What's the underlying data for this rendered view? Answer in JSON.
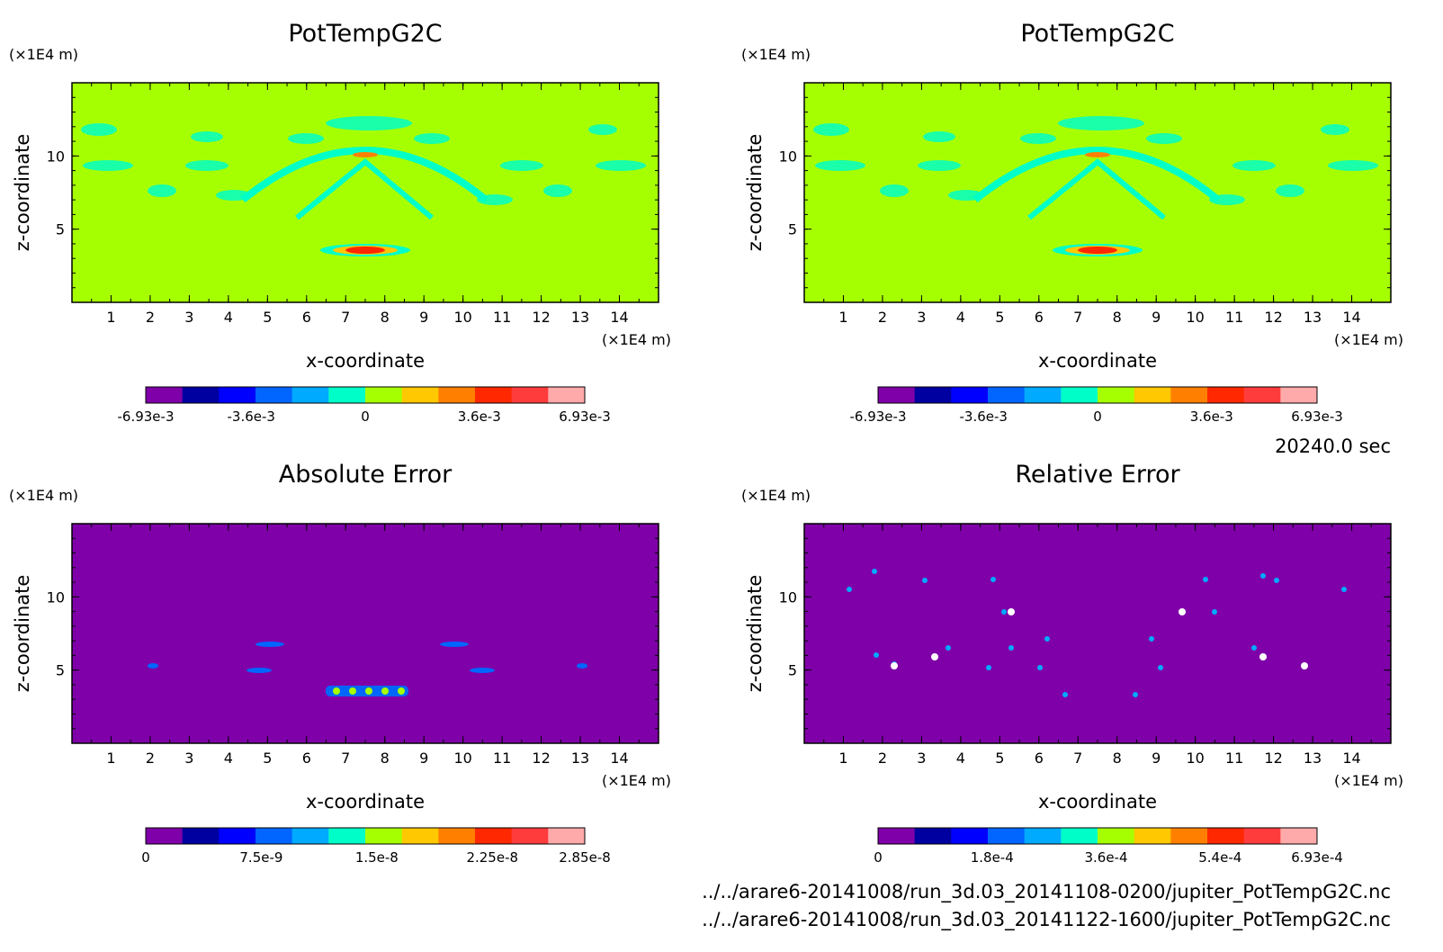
{
  "chart_data": [
    {
      "type": "heatmap",
      "title": "PotTempG2C",
      "xlabel": "x-coordinate",
      "ylabel": "z-coordinate",
      "x_unit": "(×1E4 m)",
      "y_unit": "(×1E4 m)",
      "xlim": [
        0,
        15
      ],
      "ylim": [
        0,
        15
      ],
      "xticks": [
        "1",
        "2",
        "3",
        "4",
        "5",
        "6",
        "7",
        "8",
        "9",
        "10",
        "11",
        "12",
        "13",
        "14"
      ],
      "yticks": [
        "5",
        "10"
      ],
      "colorbar_ticks": [
        "-6.93e-3",
        "-3.6e-3",
        "0",
        "3.6e-3",
        "6.93e-3"
      ],
      "colorbar_range": [
        -0.00693,
        0.00693
      ],
      "background_color": "#a6ff00",
      "colors": [
        "#7f00a8",
        "#0000a0",
        "#0000ff",
        "#0066ff",
        "#00aaff",
        "#00ffc8",
        "#a6ff00",
        "#ffc800",
        "#ff8000",
        "#ff2800",
        "#ff3c3c",
        "#ffaaaa"
      ]
    },
    {
      "type": "heatmap",
      "title": "PotTempG2C",
      "xlabel": "x-coordinate",
      "ylabel": "z-coordinate",
      "x_unit": "(×1E4 m)",
      "y_unit": "(×1E4 m)",
      "xlim": [
        0,
        15
      ],
      "ylim": [
        0,
        15
      ],
      "xticks": [
        "1",
        "2",
        "3",
        "4",
        "5",
        "6",
        "7",
        "8",
        "9",
        "10",
        "11",
        "12",
        "13",
        "14"
      ],
      "yticks": [
        "5",
        "10"
      ],
      "colorbar_ticks": [
        "-6.93e-3",
        "-3.6e-3",
        "0",
        "3.6e-3",
        "6.93e-3"
      ],
      "colorbar_range": [
        -0.00693,
        0.00693
      ],
      "background_color": "#a6ff00",
      "colors": [
        "#7f00a8",
        "#0000a0",
        "#0000ff",
        "#0066ff",
        "#00aaff",
        "#00ffc8",
        "#a6ff00",
        "#ffc800",
        "#ff8000",
        "#ff2800",
        "#ff3c3c",
        "#ffaaaa"
      ]
    },
    {
      "type": "heatmap",
      "title": "Absolute Error",
      "xlabel": "x-coordinate",
      "ylabel": "z-coordinate",
      "x_unit": "(×1E4 m)",
      "y_unit": "(×1E4 m)",
      "xlim": [
        0,
        15
      ],
      "ylim": [
        0,
        15
      ],
      "xticks": [
        "1",
        "2",
        "3",
        "4",
        "5",
        "6",
        "7",
        "8",
        "9",
        "10",
        "11",
        "12",
        "13",
        "14"
      ],
      "yticks": [
        "5",
        "10"
      ],
      "colorbar_ticks": [
        "0",
        "7.5e-9",
        "1.5e-8",
        "2.25e-8",
        "2.85e-8"
      ],
      "colorbar_range": [
        0,
        2.85e-08
      ],
      "background_color": "#7f00a8",
      "colors": [
        "#7f00a8",
        "#0000a0",
        "#0000ff",
        "#0066ff",
        "#00aaff",
        "#00ffc8",
        "#a6ff00",
        "#ffc800",
        "#ff8000",
        "#ff2800",
        "#ff3c3c",
        "#ffaaaa"
      ]
    },
    {
      "type": "heatmap",
      "title": "Relative Error",
      "xlabel": "x-coordinate",
      "ylabel": "z-coordinate",
      "x_unit": "(×1E4 m)",
      "y_unit": "(×1E4 m)",
      "xlim": [
        0,
        15
      ],
      "ylim": [
        0,
        15
      ],
      "xticks": [
        "1",
        "2",
        "3",
        "4",
        "5",
        "6",
        "7",
        "8",
        "9",
        "10",
        "11",
        "12",
        "13",
        "14"
      ],
      "yticks": [
        "5",
        "10"
      ],
      "colorbar_ticks": [
        "0",
        "1.8e-4",
        "3.6e-4",
        "5.4e-4",
        "6.93e-4"
      ],
      "colorbar_range": [
        0,
        0.000693
      ],
      "background_color": "#7f00a8",
      "colors": [
        "#7f00a8",
        "#0000a0",
        "#0000ff",
        "#0066ff",
        "#00aaff",
        "#00ffc8",
        "#a6ff00",
        "#ffc800",
        "#ff8000",
        "#ff2800",
        "#ff3c3c",
        "#ffaaaa"
      ]
    }
  ],
  "time_label": "20240.0 sec",
  "file_paths": [
    "../../arare6-20141008/run_3d.03_20141108-0200/jupiter_PotTempG2C.nc",
    "../../arare6-20141008/run_3d.03_20141122-1600/jupiter_PotTempG2C.nc"
  ]
}
